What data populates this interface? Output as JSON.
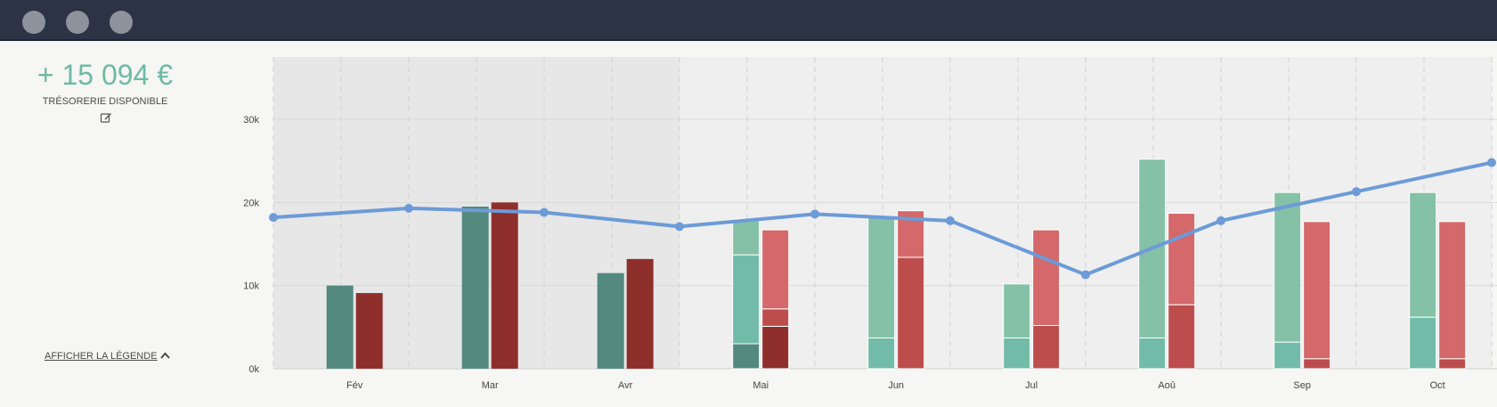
{
  "window": {
    "controls": [
      "close",
      "minimize",
      "maximize"
    ]
  },
  "summary": {
    "amount": "+ 15 094 €",
    "label": "TRÉSORERIE DISPONIBLE",
    "edit_icon": "edit-icon"
  },
  "legend_toggle": {
    "label": "AFFICHER LA LÉGENDE",
    "icon": "chevron-up-icon"
  },
  "chart_data": {
    "type": "bar",
    "categories": [
      "Fév",
      "Mar",
      "Avr",
      "Mai",
      "Jun",
      "Jul",
      "Aoû",
      "Sep",
      "Oct"
    ],
    "ylim": [
      0,
      37500
    ],
    "yticks": [
      0,
      10000,
      20000,
      30000
    ],
    "ytick_labels": [
      "0k",
      "10k",
      "20k",
      "30k"
    ],
    "grid": true,
    "past_months": 3,
    "colors": {
      "income_past": "#53897e",
      "expense_past": "#8e2f2c",
      "income_future_top": "#85c1a7",
      "income_future_base": "#72bba8",
      "income_future_dark": "#53897e",
      "expense_future_top": "#d4686a",
      "expense_future_base": "#bd4d4d",
      "expense_future_dark": "#8e2f2c",
      "line": "#6c9bd8",
      "past_bg": "#e7e7e7",
      "future_bg": "#efefef"
    },
    "series": [
      {
        "kind": "income",
        "segments": [
          [
            10000
          ],
          [
            19500
          ],
          [
            11500
          ],
          [
            3000,
            13700,
            18000
          ],
          [
            3700,
            18300
          ],
          [
            3700,
            10200
          ],
          [
            3700,
            25200
          ],
          [
            3200,
            21200
          ],
          [
            6200,
            21200
          ]
        ]
      },
      {
        "kind": "expense",
        "segments": [
          [
            9100
          ],
          [
            20000
          ],
          [
            13200
          ],
          [
            5100,
            7200,
            16700
          ],
          [
            13400,
            19000
          ],
          [
            5200,
            16700
          ],
          [
            7700,
            18700
          ],
          [
            1200,
            17700
          ],
          [
            1200,
            17700
          ]
        ]
      }
    ],
    "balance_line": {
      "x": [
        "Jan/Fév",
        "Fév/Mar",
        "Mar/Avr",
        "Avr/Mai",
        "Mai/Jun",
        "Jun/Jul",
        "Jul/Aoû",
        "Aoû/Sep",
        "Sep/Oct",
        "Oct/Nov"
      ],
      "values": [
        18200,
        19300,
        18800,
        17100,
        18600,
        17800,
        11300,
        17800,
        21300,
        24800
      ]
    }
  }
}
